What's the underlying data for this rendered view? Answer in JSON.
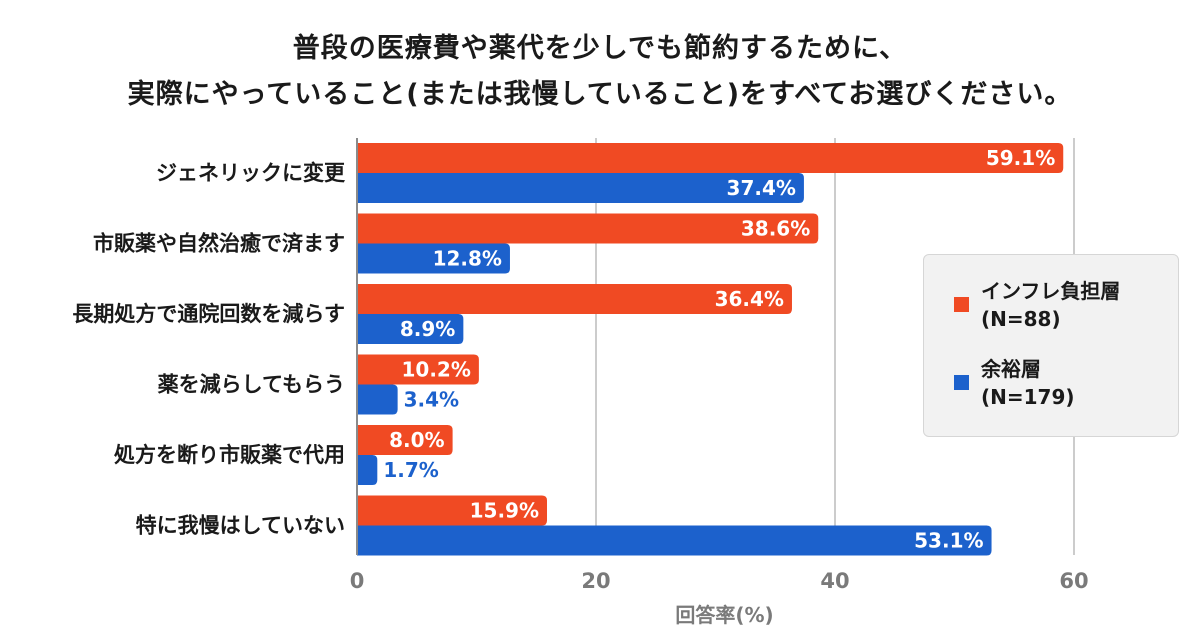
{
  "title": {
    "line1": "普段の医療費や薬代を少しでも節約するために、",
    "line2": "実際にやっていること(または我慢していること)をすべてお選びください。"
  },
  "chart_data": {
    "type": "bar",
    "orientation": "horizontal",
    "categories": [
      "ジェネリックに変更",
      "市販薬や自然治癒で済ます",
      "長期処方で通院回数を減らす",
      "薬を減らしてもらう",
      "処方を断り市販薬で代用",
      "特に我慢はしていない"
    ],
    "series": [
      {
        "name": "インフレ負担層",
        "n_label": "(N=88)",
        "color": "#f04a23",
        "values": [
          59.1,
          38.6,
          36.4,
          10.2,
          8.0,
          15.9
        ]
      },
      {
        "name": "余裕層",
        "n_label": "(N=179)",
        "color": "#1c61cc",
        "values": [
          37.4,
          12.8,
          8.9,
          3.4,
          1.7,
          53.1
        ]
      }
    ],
    "value_suffix": "%",
    "xlim": [
      0,
      60
    ],
    "xticks": [
      0,
      20,
      40,
      60
    ],
    "xlabel": "回答率(%)",
    "grid": true,
    "legend_position": "right"
  }
}
